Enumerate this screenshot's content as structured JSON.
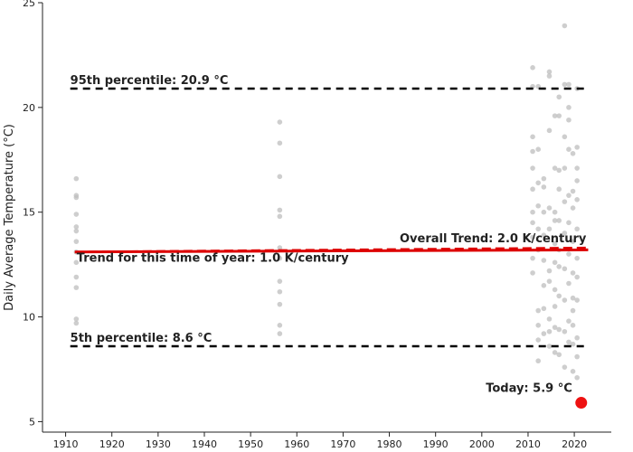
{
  "chart_data": {
    "type": "scatter",
    "ylabel": "Daily Average Temperature (°C)",
    "xlabel": "",
    "xlim": [
      1905,
      2028
    ],
    "ylim": [
      4.5,
      25
    ],
    "x_ticks": [
      1910,
      1920,
      1930,
      1940,
      1950,
      1960,
      1970,
      1980,
      1990,
      2000,
      2010,
      2020
    ],
    "y_ticks": [
      5,
      10,
      15,
      20,
      25
    ],
    "grid": false,
    "colors": {
      "points": "#bdbdbd",
      "trend": "#dd0000",
      "percentile_lines": "#000000",
      "today": "#ee1111"
    },
    "percentiles": [
      {
        "label": "95th percentile: 20.9 °C",
        "value": 20.9
      },
      {
        "label": "5th percentile: 8.6 °C",
        "value": 8.6
      }
    ],
    "trend_seasonal": {
      "label": "Trend for this time of year: 1.0 K/century",
      "x": [
        1912,
        2023
      ],
      "y": [
        13.1,
        13.2
      ]
    },
    "trend_overall": {
      "label": "Overall Trend: 2.0 K/century",
      "x": [
        1912,
        2023
      ],
      "y": [
        13.1,
        13.3
      ]
    },
    "today": {
      "label": "Today: 5.9 °C",
      "x": 2021.5,
      "y": 5.9
    },
    "points": [
      {
        "x": 1912.3,
        "y": 16.6
      },
      {
        "x": 1912.3,
        "y": 15.8
      },
      {
        "x": 1912.3,
        "y": 15.7
      },
      {
        "x": 1912.3,
        "y": 14.9
      },
      {
        "x": 1912.3,
        "y": 14.3
      },
      {
        "x": 1912.3,
        "y": 14.1
      },
      {
        "x": 1912.3,
        "y": 13.6
      },
      {
        "x": 1912.3,
        "y": 13.1
      },
      {
        "x": 1912.3,
        "y": 12.6
      },
      {
        "x": 1912.3,
        "y": 11.9
      },
      {
        "x": 1912.3,
        "y": 11.4
      },
      {
        "x": 1912.3,
        "y": 9.9
      },
      {
        "x": 1912.3,
        "y": 9.7
      },
      {
        "x": 1956.3,
        "y": 19.3
      },
      {
        "x": 1956.3,
        "y": 18.3
      },
      {
        "x": 1956.3,
        "y": 16.7
      },
      {
        "x": 1956.3,
        "y": 15.1
      },
      {
        "x": 1956.3,
        "y": 14.8
      },
      {
        "x": 1956.3,
        "y": 13.3
      },
      {
        "x": 1956.3,
        "y": 12.8
      },
      {
        "x": 1956.3,
        "y": 11.7
      },
      {
        "x": 1956.3,
        "y": 11.2
      },
      {
        "x": 1956.3,
        "y": 10.6
      },
      {
        "x": 1956.3,
        "y": 9.6
      },
      {
        "x": 1956.3,
        "y": 9.2
      },
      {
        "x": 2011.0,
        "y": 21.9
      },
      {
        "x": 2011.0,
        "y": 21.0
      },
      {
        "x": 2011.0,
        "y": 18.6
      },
      {
        "x": 2011.0,
        "y": 17.9
      },
      {
        "x": 2011.0,
        "y": 17.1
      },
      {
        "x": 2011.0,
        "y": 16.1
      },
      {
        "x": 2011.0,
        "y": 15.0
      },
      {
        "x": 2011.0,
        "y": 14.5
      },
      {
        "x": 2011.0,
        "y": 13.8
      },
      {
        "x": 2011.0,
        "y": 12.8
      },
      {
        "x": 2011.0,
        "y": 12.1
      },
      {
        "x": 2012.2,
        "y": 21.0
      },
      {
        "x": 2012.2,
        "y": 18.0
      },
      {
        "x": 2012.2,
        "y": 16.4
      },
      {
        "x": 2012.2,
        "y": 15.3
      },
      {
        "x": 2012.2,
        "y": 14.2
      },
      {
        "x": 2012.2,
        "y": 13.2
      },
      {
        "x": 2012.2,
        "y": 10.3
      },
      {
        "x": 2012.2,
        "y": 9.6
      },
      {
        "x": 2012.2,
        "y": 8.9
      },
      {
        "x": 2012.2,
        "y": 7.9
      },
      {
        "x": 2013.4,
        "y": 16.6
      },
      {
        "x": 2013.4,
        "y": 16.2
      },
      {
        "x": 2013.4,
        "y": 15.0
      },
      {
        "x": 2013.4,
        "y": 13.9
      },
      {
        "x": 2013.4,
        "y": 12.7
      },
      {
        "x": 2013.4,
        "y": 11.5
      },
      {
        "x": 2013.4,
        "y": 10.4
      },
      {
        "x": 2013.4,
        "y": 9.2
      },
      {
        "x": 2014.6,
        "y": 21.7
      },
      {
        "x": 2014.6,
        "y": 21.5
      },
      {
        "x": 2014.6,
        "y": 18.9
      },
      {
        "x": 2014.6,
        "y": 15.2
      },
      {
        "x": 2014.6,
        "y": 14.2
      },
      {
        "x": 2014.6,
        "y": 12.2
      },
      {
        "x": 2014.6,
        "y": 11.7
      },
      {
        "x": 2014.6,
        "y": 9.9
      },
      {
        "x": 2014.6,
        "y": 9.3
      },
      {
        "x": 2014.6,
        "y": 8.6
      },
      {
        "x": 2015.8,
        "y": 19.6
      },
      {
        "x": 2015.8,
        "y": 17.1
      },
      {
        "x": 2015.8,
        "y": 15.0
      },
      {
        "x": 2015.8,
        "y": 14.6
      },
      {
        "x": 2015.8,
        "y": 13.5
      },
      {
        "x": 2015.8,
        "y": 12.6
      },
      {
        "x": 2015.8,
        "y": 11.3
      },
      {
        "x": 2015.8,
        "y": 10.5
      },
      {
        "x": 2015.8,
        "y": 9.5
      },
      {
        "x": 2015.8,
        "y": 8.3
      },
      {
        "x": 2016.7,
        "y": 20.5
      },
      {
        "x": 2016.7,
        "y": 19.6
      },
      {
        "x": 2016.7,
        "y": 17.0
      },
      {
        "x": 2016.7,
        "y": 16.1
      },
      {
        "x": 2016.7,
        "y": 14.6
      },
      {
        "x": 2016.7,
        "y": 13.2
      },
      {
        "x": 2016.7,
        "y": 12.4
      },
      {
        "x": 2016.7,
        "y": 11.0
      },
      {
        "x": 2016.7,
        "y": 9.4
      },
      {
        "x": 2016.7,
        "y": 8.2
      },
      {
        "x": 2017.9,
        "y": 23.9
      },
      {
        "x": 2017.9,
        "y": 21.1
      },
      {
        "x": 2017.9,
        "y": 18.6
      },
      {
        "x": 2017.9,
        "y": 17.1
      },
      {
        "x": 2017.9,
        "y": 15.5
      },
      {
        "x": 2017.9,
        "y": 14.0
      },
      {
        "x": 2017.9,
        "y": 12.3
      },
      {
        "x": 2017.9,
        "y": 10.8
      },
      {
        "x": 2017.9,
        "y": 9.3
      },
      {
        "x": 2017.9,
        "y": 7.6
      },
      {
        "x": 2018.8,
        "y": 21.1
      },
      {
        "x": 2018.8,
        "y": 20.0
      },
      {
        "x": 2018.8,
        "y": 19.4
      },
      {
        "x": 2018.8,
        "y": 18.0
      },
      {
        "x": 2018.8,
        "y": 15.8
      },
      {
        "x": 2018.8,
        "y": 14.5
      },
      {
        "x": 2018.8,
        "y": 13.0
      },
      {
        "x": 2018.8,
        "y": 11.6
      },
      {
        "x": 2018.8,
        "y": 9.8
      },
      {
        "x": 2018.8,
        "y": 8.8
      },
      {
        "x": 2019.7,
        "y": 17.8
      },
      {
        "x": 2019.7,
        "y": 16.0
      },
      {
        "x": 2019.7,
        "y": 15.2
      },
      {
        "x": 2019.7,
        "y": 13.6
      },
      {
        "x": 2019.7,
        "y": 12.1
      },
      {
        "x": 2019.7,
        "y": 10.9
      },
      {
        "x": 2019.7,
        "y": 10.3
      },
      {
        "x": 2019.7,
        "y": 9.6
      },
      {
        "x": 2019.7,
        "y": 8.7
      },
      {
        "x": 2019.7,
        "y": 7.4
      },
      {
        "x": 2020.6,
        "y": 20.9
      },
      {
        "x": 2020.6,
        "y": 18.1
      },
      {
        "x": 2020.6,
        "y": 17.1
      },
      {
        "x": 2020.6,
        "y": 16.5
      },
      {
        "x": 2020.6,
        "y": 15.6
      },
      {
        "x": 2020.6,
        "y": 14.2
      },
      {
        "x": 2020.6,
        "y": 12.8
      },
      {
        "x": 2020.6,
        "y": 11.9
      },
      {
        "x": 2020.6,
        "y": 10.8
      },
      {
        "x": 2020.6,
        "y": 9.0
      },
      {
        "x": 2020.6,
        "y": 8.1
      },
      {
        "x": 2020.6,
        "y": 7.1
      }
    ]
  }
}
